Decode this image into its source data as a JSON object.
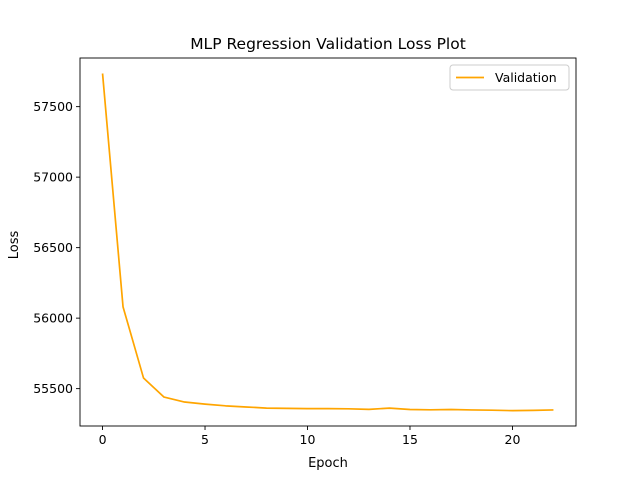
{
  "chart_data": {
    "type": "line",
    "title": "MLP Regression Validation Loss Plot",
    "xlabel": "Epoch",
    "ylabel": "Loss",
    "xlim": [
      -1.1,
      23.1
    ],
    "ylim": [
      55235,
      57845
    ],
    "xticks": [
      0,
      5,
      10,
      15,
      20
    ],
    "yticks": [
      55500,
      56000,
      56500,
      57000,
      57500
    ],
    "grid": false,
    "legend": {
      "position": "top-right"
    },
    "series": [
      {
        "name": "Validation",
        "color": "#ffa500",
        "x": [
          0,
          1,
          2,
          3,
          4,
          5,
          6,
          7,
          8,
          9,
          10,
          11,
          12,
          13,
          14,
          15,
          16,
          17,
          18,
          19,
          20,
          21,
          22
        ],
        "y": [
          57735,
          56080,
          55575,
          55440,
          55405,
          55390,
          55378,
          55370,
          55362,
          55360,
          55358,
          55358,
          55357,
          55353,
          55362,
          55352,
          55350,
          55352,
          55349,
          55347,
          55344,
          55346,
          55349
        ]
      }
    ]
  }
}
